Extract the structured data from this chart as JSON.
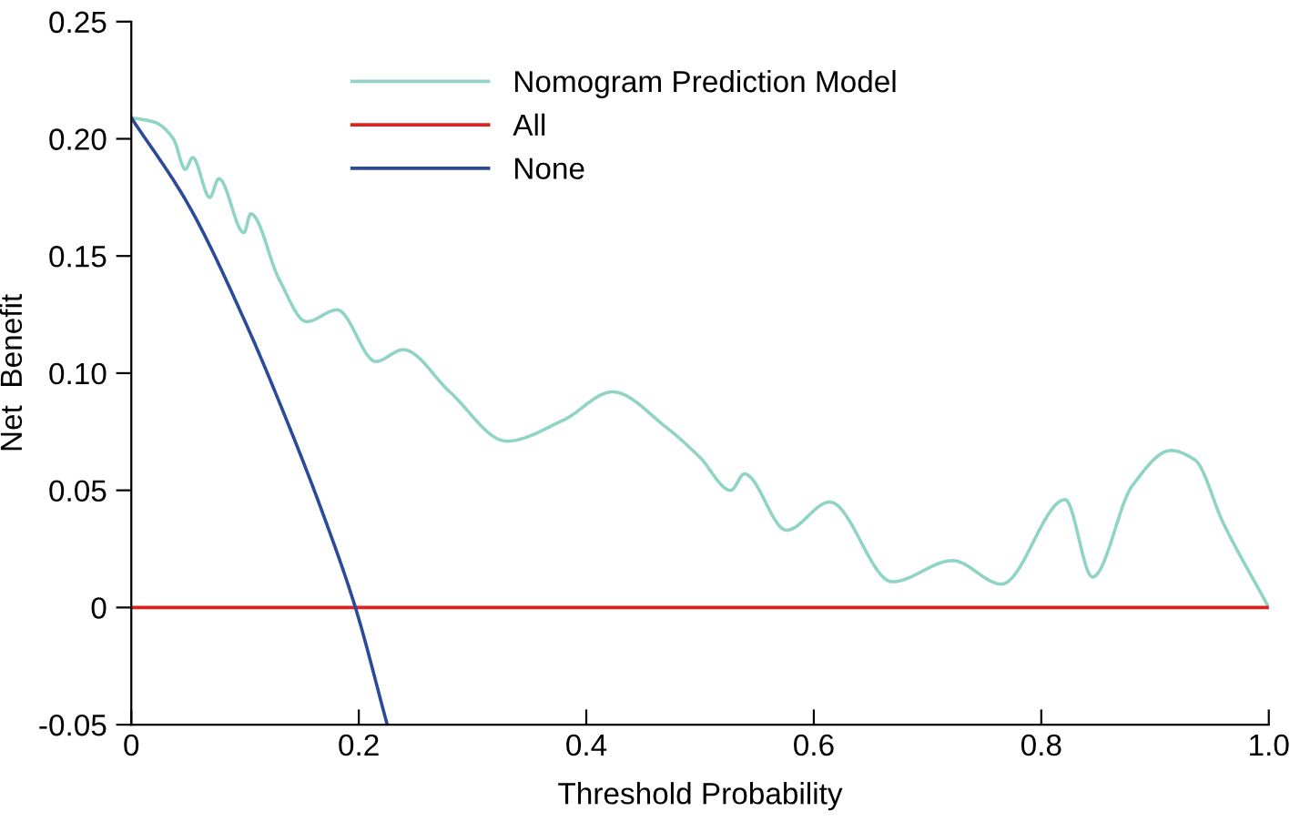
{
  "chart_data": {
    "type": "line",
    "xlabel": "Threshold Probability",
    "ylabel": "Net  Benefit",
    "xlim": [
      0,
      1.0
    ],
    "ylim": [
      -0.05,
      0.25
    ],
    "xticks": [
      0,
      0.2,
      0.4,
      0.6,
      0.8,
      {
        "value": 1.0,
        "label": "1.0"
      }
    ],
    "yticks": [
      {
        "value": -0.05,
        "label": "-0.05"
      },
      0,
      0.05,
      {
        "value": 0.1,
        "label": "0.10"
      },
      0.15,
      {
        "value": 0.2,
        "label": "0.20"
      },
      0.25
    ],
    "grid": false,
    "legend": "top",
    "marker": "none",
    "line_style": "solid",
    "series": [
      {
        "name": "Nomogram Prediction Model",
        "color": "#8fd4c4",
        "x": [
          0,
          0.021,
          0.037,
          0.0475,
          0.054,
          0.069,
          0.077,
          0.099,
          0.105,
          0.13,
          0.154,
          0.181,
          0.215,
          0.239,
          0.28,
          0.33,
          0.38,
          0.423,
          0.47,
          0.5,
          0.527,
          0.539,
          0.576,
          0.614,
          0.669,
          0.722,
          0.765,
          0.821,
          0.845,
          0.88,
          0.914,
          0.935,
          0.96,
          1.0
        ],
        "values": [
          0.209,
          0.207,
          0.2,
          0.187,
          0.192,
          0.175,
          0.183,
          0.16,
          0.168,
          0.14,
          0.122,
          0.127,
          0.105,
          0.11,
          0.092,
          0.071,
          0.08,
          0.092,
          0.077,
          0.064,
          0.05,
          0.057,
          0.033,
          0.045,
          0.011,
          0.02,
          0.01,
          0.046,
          0.013,
          0.052,
          0.067,
          0.063,
          0.036,
          0
        ]
      },
      {
        "name": "All",
        "color": "#e0201b",
        "x": [
          0,
          1.0
        ],
        "values": [
          0,
          0
        ]
      },
      {
        "name": "None",
        "color": "#2b4a9a",
        "x": [
          0,
          0.05,
          0.1,
          0.139,
          0.17,
          0.197,
          0.225
        ],
        "values": [
          0.209,
          0.172,
          0.122,
          0.077,
          0.038,
          0,
          -0.05
        ]
      }
    ]
  }
}
